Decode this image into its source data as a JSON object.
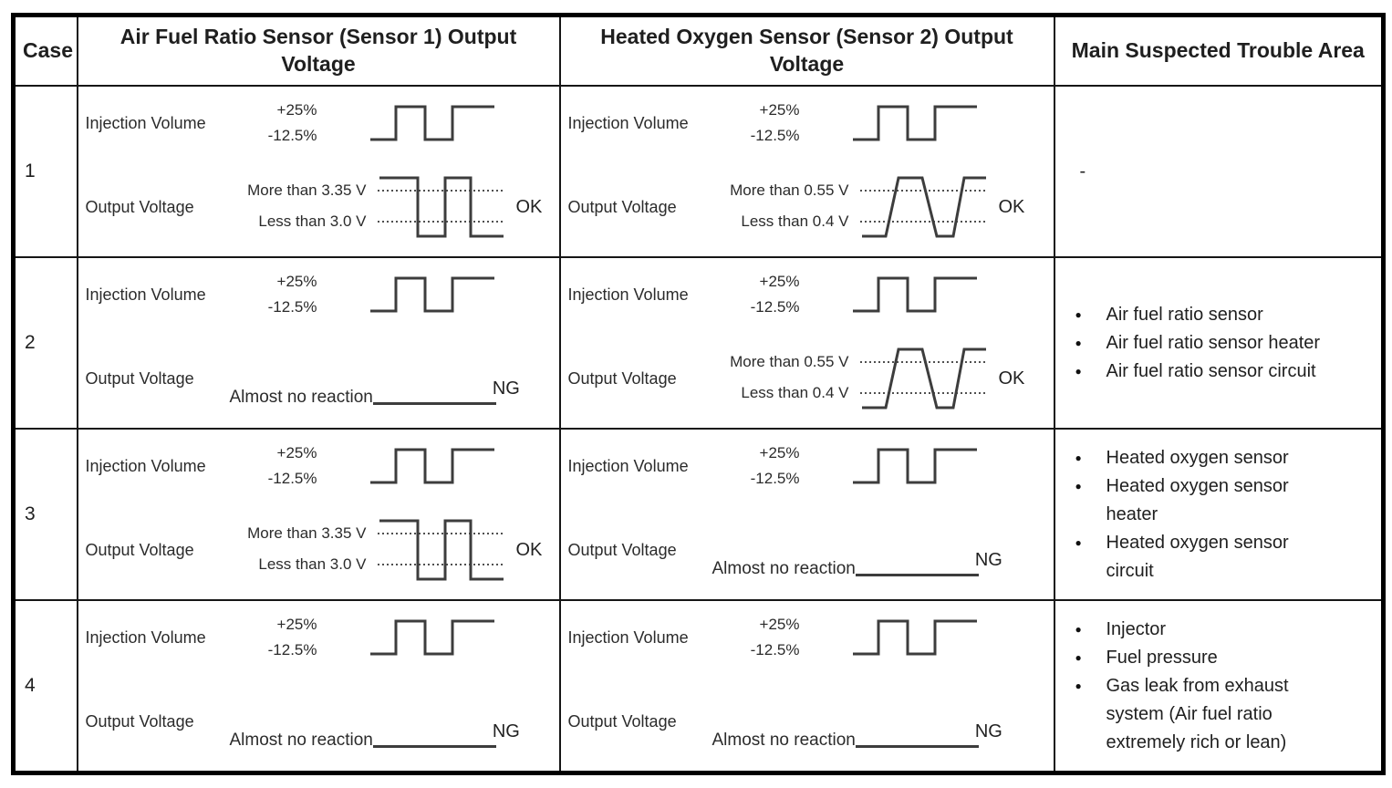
{
  "colors": {
    "background": "#ffffff",
    "border": "#000000",
    "text": "#1f1f1f",
    "wave": "#3d3d3d",
    "dotted": "#4f4f4f"
  },
  "table": {
    "headers": {
      "case": "Case",
      "sensor1": "Air Fuel Ratio Sensor (Sensor 1) Output Voltage",
      "sensor2": "Heated Oxygen Sensor (Sensor 2) Output Voltage",
      "trouble": "Main Suspected Trouble Area"
    },
    "labels": {
      "injection": "Injection Volume",
      "output": "Output Voltage",
      "injection_high": "+25%",
      "injection_low": "-12.5%"
    },
    "rows": [
      {
        "case": "1",
        "sensor1": {
          "waveform": "inverted-square",
          "upper": "More than 3.35 V",
          "lower": "Less than 3.0 V",
          "verdict": "OK"
        },
        "sensor2": {
          "waveform": "trapezoid",
          "upper": "More than 0.55 V",
          "lower": "Less than 0.4 V",
          "verdict": "OK"
        },
        "trouble": {
          "dash": "-",
          "items": []
        }
      },
      {
        "case": "2",
        "sensor1": {
          "waveform": "flat",
          "label": "Almost no reaction",
          "verdict": "NG"
        },
        "sensor2": {
          "waveform": "trapezoid",
          "upper": "More than 0.55 V",
          "lower": "Less than 0.4 V",
          "verdict": "OK"
        },
        "trouble": {
          "dash": "",
          "items": [
            "Air fuel ratio sensor",
            "Air fuel ratio sensor heater",
            "Air fuel ratio sensor circuit"
          ]
        }
      },
      {
        "case": "3",
        "sensor1": {
          "waveform": "inverted-square",
          "upper": "More than 3.35 V",
          "lower": "Less than 3.0 V",
          "verdict": "OK"
        },
        "sensor2": {
          "waveform": "flat",
          "label": "Almost no reaction",
          "verdict": "NG"
        },
        "trouble": {
          "dash": "",
          "items": [
            "Heated oxygen sensor",
            "Heated oxygen sensor\nheater",
            "Heated oxygen sensor\ncircuit"
          ]
        }
      },
      {
        "case": "4",
        "sensor1": {
          "waveform": "flat",
          "label": "Almost no reaction",
          "verdict": "NG"
        },
        "sensor2": {
          "waveform": "flat",
          "label": "Almost no reaction",
          "verdict": "NG"
        },
        "trouble": {
          "dash": "",
          "items": [
            "Injector",
            "Fuel pressure",
            "Gas leak from exhaust\nsystem (Air fuel ratio\nextremely rich or lean)"
          ]
        }
      }
    ]
  }
}
